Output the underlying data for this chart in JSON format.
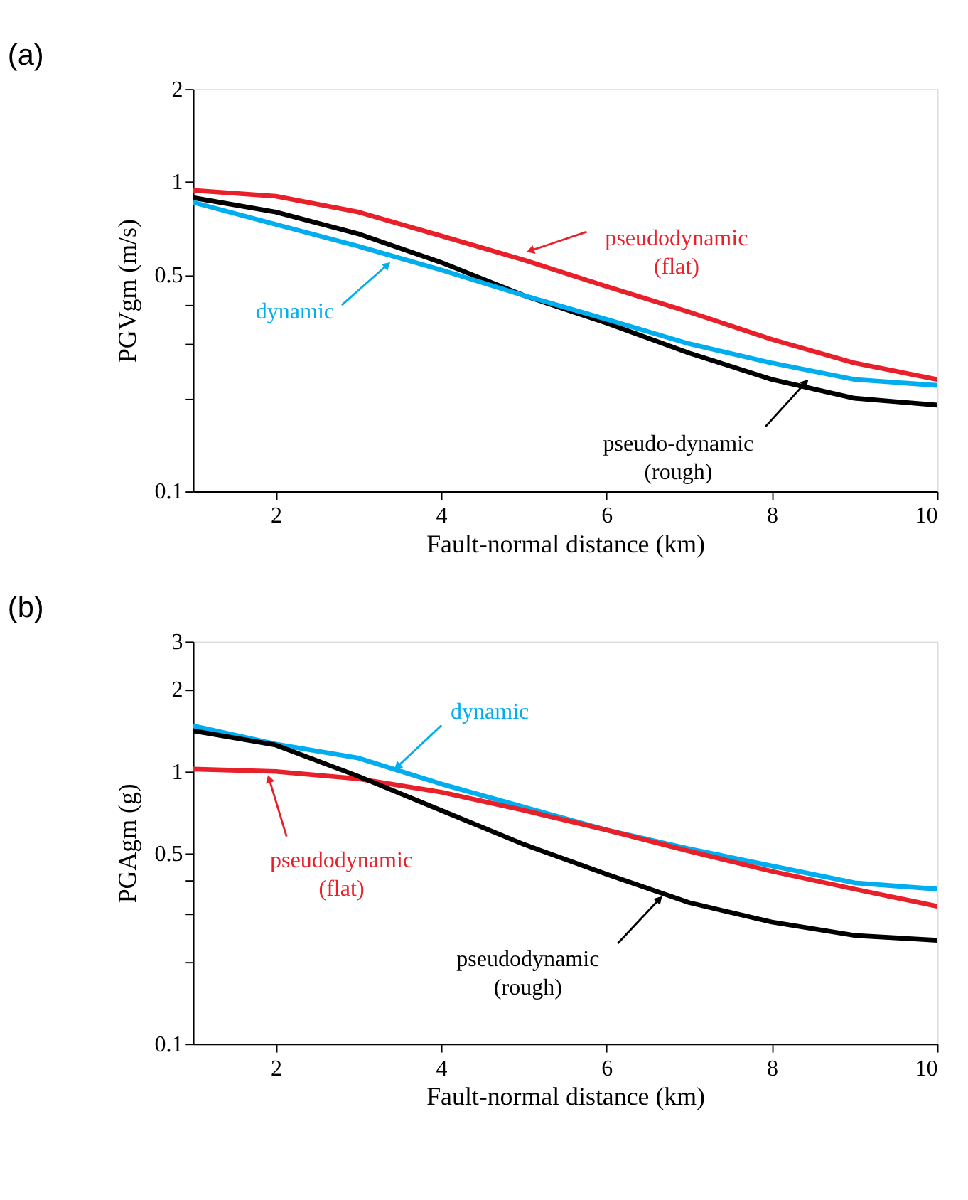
{
  "chart_data": [
    {
      "type": "line",
      "title": "(a)",
      "xlabel": "Fault-normal distance (km)",
      "ylabel": "PGVgm (m/s)",
      "log": "y",
      "grid": false,
      "legend": false,
      "marker": "none",
      "line_style": "solid",
      "x": [
        1,
        2,
        3,
        4,
        5,
        6,
        7,
        8,
        9,
        10
      ],
      "xlim": [
        1,
        10
      ],
      "xticks": [
        2,
        4,
        6,
        8,
        10
      ],
      "ylim": [
        0.1,
        2
      ],
      "yticks": [
        0.1,
        {
          "value": 0.2,
          "label": null
        },
        {
          "value": 0.3,
          "label": null
        },
        {
          "value": 0.4,
          "label": null
        },
        0.5,
        1,
        2
      ],
      "series": [
        {
          "color": "#e8202a",
          "values": [
            0.94,
            0.9,
            0.8,
            0.67,
            0.56,
            0.46,
            0.38,
            0.31,
            0.26,
            0.23
          ]
        },
        {
          "color": "#000000",
          "values": [
            0.89,
            0.8,
            0.68,
            0.55,
            0.43,
            0.35,
            0.28,
            0.23,
            0.2,
            0.19
          ]
        },
        {
          "color": "#00aeef",
          "values": [
            0.86,
            0.73,
            0.62,
            0.52,
            0.43,
            0.36,
            0.3,
            0.26,
            0.23,
            0.22
          ]
        }
      ],
      "annotations": [
        {
          "text": "pseudodynamic\n(flat)",
          "x": 5.08,
          "y": 0.6
        },
        {
          "text": "dynamic",
          "x": 3.35,
          "y": 0.54
        },
        {
          "text": "pseudo-dynamic\n(rough)",
          "x": 8.41,
          "y": 0.225
        }
      ]
    },
    {
      "type": "line",
      "title": "(b)",
      "xlabel": "Fault-normal distance (km)",
      "ylabel": "PGAgm (g)",
      "log": "y",
      "grid": false,
      "legend": false,
      "marker": "none",
      "line_style": "solid",
      "x": [
        1,
        2,
        3,
        4,
        5,
        6,
        7,
        8,
        9,
        10
      ],
      "xlim": [
        1,
        10
      ],
      "xticks": [
        2,
        4,
        6,
        8,
        10
      ],
      "ylim": [
        0.1,
        3
      ],
      "yticks": [
        0.1,
        {
          "value": 0.2,
          "label": null
        },
        {
          "value": 0.3,
          "label": null
        },
        {
          "value": 0.4,
          "label": null
        },
        0.5,
        1,
        2,
        3
      ],
      "series": [
        {
          "color": "#00aeef",
          "values": [
            1.47,
            1.26,
            1.12,
            0.9,
            0.74,
            0.61,
            0.52,
            0.45,
            0.39,
            0.37
          ]
        },
        {
          "color": "#e8202a",
          "values": [
            1.02,
            1.0,
            0.94,
            0.84,
            0.72,
            0.61,
            0.51,
            0.43,
            0.37,
            0.32
          ]
        },
        {
          "color": "#000000",
          "values": [
            1.41,
            1.25,
            0.96,
            0.72,
            0.54,
            0.42,
            0.33,
            0.28,
            0.25,
            0.24
          ]
        }
      ],
      "annotations": [
        {
          "text": "dynamic",
          "x": 3.47,
          "y": 1.04
        },
        {
          "text": "pseudodynamic\n(flat)",
          "x": 1.92,
          "y": 0.94
        },
        {
          "text": "pseudodynamic\n(rough)",
          "x": 6.64,
          "y": 0.34
        }
      ]
    }
  ]
}
